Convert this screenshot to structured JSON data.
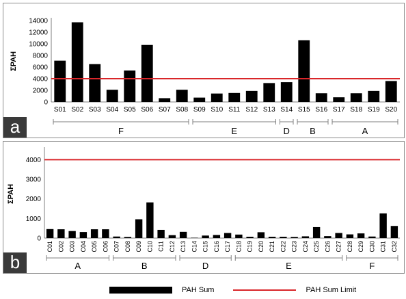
{
  "colors": {
    "bar": "#000000",
    "limit": "#d9262a",
    "axis": "#7f7f7f",
    "bracket": "#7f7f7f"
  },
  "legend": {
    "sum_label": "PAH Sum",
    "limit_label": "PAH Sum Limit"
  },
  "chart_data": [
    {
      "type": "bar",
      "panel_label": "a",
      "ylabel": "ΣPAH",
      "ylim": [
        0,
        14000
      ],
      "yticks": [
        0,
        2000,
        4000,
        6000,
        8000,
        10000,
        12000,
        14000
      ],
      "tick_labels_rotated": false,
      "categories": [
        "S01",
        "S02",
        "S03",
        "S04",
        "S05",
        "S06",
        "S07",
        "S08",
        "S09",
        "S10",
        "S11",
        "S12",
        "S13",
        "S14",
        "S15",
        "S16",
        "S17",
        "S18",
        "S19",
        "S20"
      ],
      "series": [
        {
          "name": "PAH Sum",
          "values": [
            7100,
            13700,
            6500,
            2100,
            5400,
            9800,
            650,
            2100,
            750,
            1450,
            1550,
            1900,
            3250,
            3400,
            10600,
            1500,
            800,
            1500,
            1900,
            3600
          ]
        }
      ],
      "limit": 4000,
      "groups": [
        {
          "label": "F",
          "start": 0,
          "end": 7
        },
        {
          "label": "E",
          "start": 8,
          "end": 12
        },
        {
          "label": "D",
          "start": 13,
          "end": 13
        },
        {
          "label": "B",
          "start": 14,
          "end": 15
        },
        {
          "label": "A",
          "start": 16,
          "end": 19
        }
      ]
    },
    {
      "type": "bar",
      "panel_label": "b",
      "ylabel": "ΣPAH",
      "ylim": [
        0,
        4500
      ],
      "yticks": [
        0,
        1000,
        2000,
        3000,
        4000
      ],
      "tick_labels_rotated": true,
      "categories": [
        "C01",
        "C02",
        "C03",
        "C04",
        "C05",
        "C06",
        "C07",
        "C08",
        "C09",
        "C10",
        "C11",
        "C12",
        "C13",
        "C14",
        "C15",
        "C16",
        "C17",
        "C18",
        "C19",
        "C20",
        "C21",
        "C22",
        "C23",
        "C24",
        "C25",
        "C26",
        "C27",
        "C28",
        "C29",
        "C30",
        "C31",
        "C32"
      ],
      "series": [
        {
          "name": "PAH Sum",
          "values": [
            460,
            450,
            360,
            310,
            450,
            450,
            80,
            60,
            960,
            1820,
            420,
            150,
            320,
            20,
            130,
            160,
            260,
            180,
            70,
            300,
            70,
            70,
            60,
            90,
            560,
            100,
            260,
            190,
            240,
            80,
            1260,
            620
          ]
        }
      ],
      "limit": 4000,
      "groups": [
        {
          "label": "A",
          "start": 0,
          "end": 5
        },
        {
          "label": "B",
          "start": 6,
          "end": 11
        },
        {
          "label": "D",
          "start": 12,
          "end": 16
        },
        {
          "label": "E",
          "start": 17,
          "end": 26
        },
        {
          "label": "F",
          "start": 27,
          "end": 31
        }
      ]
    }
  ]
}
